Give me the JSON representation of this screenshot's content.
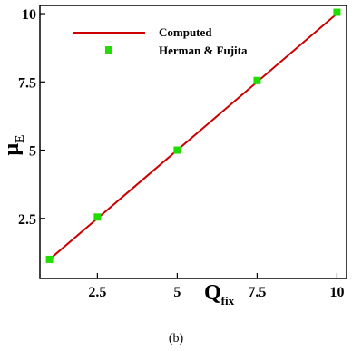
{
  "chart_data": {
    "type": "line",
    "x_axis": {
      "label": "Q",
      "label_subscript": "fix",
      "range": [
        0.7,
        10.3
      ],
      "ticks": [
        2.5,
        5,
        7.5,
        10
      ],
      "tick_labels": [
        "2.5",
        "5",
        "7.5",
        "10"
      ]
    },
    "y_axis": {
      "label": "μ",
      "label_subscript": "E",
      "range": [
        0.3,
        10.3
      ],
      "ticks": [
        2.5,
        5,
        7.5,
        10
      ],
      "tick_labels": [
        "2.5",
        "5",
        "7.5",
        "10"
      ]
    },
    "series": [
      {
        "name": "Computed",
        "kind": "line",
        "color": "#cc0000",
        "x": [
          1,
          10
        ],
        "y": [
          1,
          10
        ]
      },
      {
        "name": "Herman & Fujita",
        "kind": "scatter",
        "marker": "square",
        "color": "#22dd00",
        "x": [
          1,
          2.5,
          5,
          7.5,
          10
        ],
        "y": [
          1,
          2.55,
          5,
          7.55,
          10.05
        ]
      }
    ],
    "legend": {
      "position": "top-left"
    },
    "grid": false
  },
  "caption": "(b)"
}
